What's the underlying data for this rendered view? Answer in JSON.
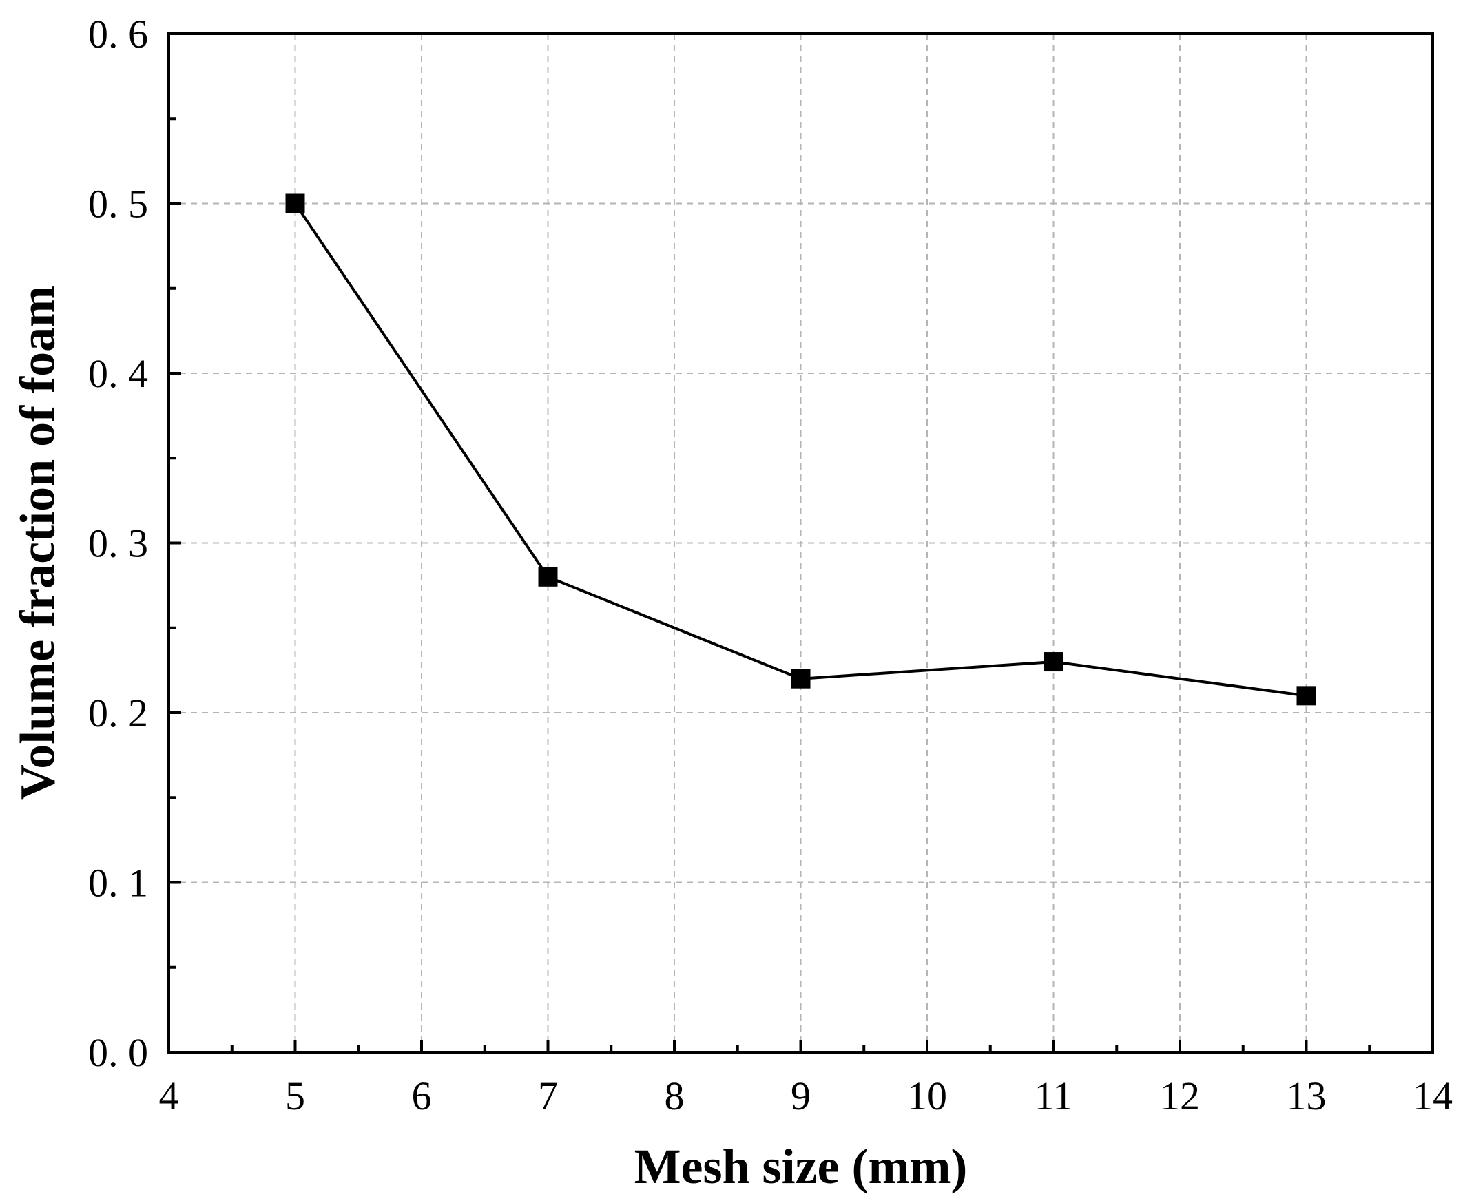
{
  "chart_data": {
    "type": "line",
    "title": "",
    "xlabel": "Mesh size (mm)",
    "ylabel": "Volume fraction of foam",
    "xlim": [
      4,
      14
    ],
    "ylim": [
      0.0,
      0.6
    ],
    "x_ticks": [
      4,
      5,
      6,
      7,
      8,
      9,
      10,
      11,
      12,
      13,
      14
    ],
    "x_tick_labels": [
      "4",
      "5",
      "6",
      "7",
      "8",
      "9",
      "10",
      "11",
      "12",
      "13",
      "14"
    ],
    "y_ticks": [
      0.0,
      0.1,
      0.2,
      0.3,
      0.4,
      0.5,
      0.6
    ],
    "y_tick_labels": [
      "0. 0",
      "0. 1",
      "0. 2",
      "0. 3",
      "0. 4",
      "0. 5",
      "0. 6"
    ],
    "grid": true,
    "marker": "square",
    "series_color": "#000000",
    "grid_color": "#b4b4b4",
    "series": [
      {
        "x": [
          5,
          7,
          9,
          11,
          13
        ],
        "values": [
          0.5,
          0.28,
          0.22,
          0.23,
          0.21
        ]
      }
    ]
  }
}
